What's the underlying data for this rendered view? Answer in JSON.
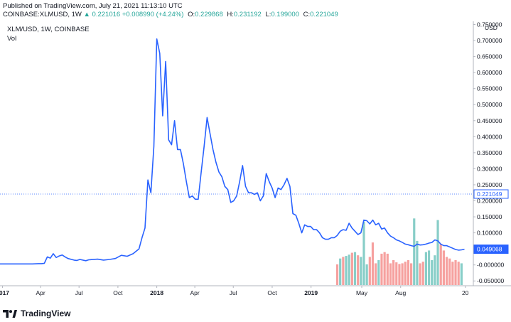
{
  "header": {
    "published": "Published on TradingView.com, July 21, 2021 11:13:10 UTC",
    "symbol": "COINBASE:XLMUSD, 1W",
    "last": "0.221016",
    "change": "+0.008990 (+4.24%)",
    "open_label": "O:",
    "open": "0.229868",
    "high_label": "H:",
    "high": "0.231192",
    "low_label": "L:",
    "low": "0.199000",
    "close_label": "C:",
    "close": "0.221049"
  },
  "pane": {
    "title": "XLM/USD, 1W, COINBASE",
    "vol_label": "Vol"
  },
  "footer": {
    "brand": "TradingView",
    "logo_icon": "tradingview-logo-icon"
  },
  "colors": {
    "line": "#2962ff",
    "vol_up": "#26a69a",
    "vol_down": "#ef5350",
    "price_tag": "#2962ff"
  },
  "chart_data": {
    "type": "line",
    "currency": "USD",
    "ylim": [
      -0.065,
      0.76
    ],
    "y_ticks": [
      {
        "label": "0.750000",
        "v": 0.75
      },
      {
        "label": "0.700000",
        "v": 0.7
      },
      {
        "label": "0.650000",
        "v": 0.65
      },
      {
        "label": "0.600000",
        "v": 0.6
      },
      {
        "label": "0.550000",
        "v": 0.55
      },
      {
        "label": "0.500000",
        "v": 0.5
      },
      {
        "label": "0.450000",
        "v": 0.45
      },
      {
        "label": "0.400000",
        "v": 0.4
      },
      {
        "label": "0.350000",
        "v": 0.35
      },
      {
        "label": "0.300000",
        "v": 0.3
      },
      {
        "label": "0.250000",
        "v": 0.25
      },
      {
        "label": "0.200000",
        "v": 0.2
      },
      {
        "label": "0.150000",
        "v": 0.15
      },
      {
        "label": "0.100000",
        "v": 0.1
      },
      {
        "label": "0.050000",
        "v": 0.05
      },
      {
        "label": "-0.000000",
        "v": 0.0
      },
      {
        "label": "-0.050000",
        "v": -0.05
      }
    ],
    "x_ticks": [
      {
        "label": "2017",
        "t": "2017-01-01"
      },
      {
        "label": "Apr",
        "t": "2017-04-01"
      },
      {
        "label": "Jul",
        "t": "2017-07-01"
      },
      {
        "label": "Oct",
        "t": "2017-10-01"
      },
      {
        "label": "2018",
        "t": "2018-01-01"
      },
      {
        "label": "Apr",
        "t": "2018-04-01"
      },
      {
        "label": "Jul",
        "t": "2018-07-01"
      },
      {
        "label": "Oct",
        "t": "2018-10-01"
      },
      {
        "label": "2019",
        "t": "2019-01-01"
      },
      {
        "label": "May",
        "t": "2019-05-01"
      },
      {
        "label": "Aug",
        "t": "2019-08-01"
      },
      {
        "label": "20",
        "t": "2020-01-01"
      }
    ],
    "x_range": [
      "2016-12-26",
      "2020-01-20"
    ],
    "price_tags": [
      {
        "label": "0.221049",
        "v": 0.221049,
        "style": "outline"
      },
      {
        "label": "0.049068",
        "v": 0.049068,
        "style": "filled"
      }
    ],
    "series": [
      {
        "values": [
          [
            "2016-12-26",
            0.003
          ],
          [
            "2017-01-16",
            0.003
          ],
          [
            "2017-02-13",
            0.003
          ],
          [
            "2017-03-13",
            0.003
          ],
          [
            "2017-03-27",
            0.004
          ],
          [
            "2017-04-03",
            0.004
          ],
          [
            "2017-04-10",
            0.005
          ],
          [
            "2017-04-17",
            0.025
          ],
          [
            "2017-04-24",
            0.021
          ],
          [
            "2017-05-01",
            0.035
          ],
          [
            "2017-05-08",
            0.023
          ],
          [
            "2017-05-15",
            0.028
          ],
          [
            "2017-05-22",
            0.031
          ],
          [
            "2017-05-29",
            0.025
          ],
          [
            "2017-06-05",
            0.02
          ],
          [
            "2017-06-19",
            0.015
          ],
          [
            "2017-06-26",
            0.014
          ],
          [
            "2017-07-03",
            0.017
          ],
          [
            "2017-07-17",
            0.013
          ],
          [
            "2017-07-24",
            0.016
          ],
          [
            "2017-08-14",
            0.018
          ],
          [
            "2017-08-28",
            0.015
          ],
          [
            "2017-09-11",
            0.017
          ],
          [
            "2017-09-25",
            0.02
          ],
          [
            "2017-10-09",
            0.03
          ],
          [
            "2017-10-23",
            0.027
          ],
          [
            "2017-11-06",
            0.035
          ],
          [
            "2017-11-20",
            0.05
          ],
          [
            "2017-11-27",
            0.085
          ],
          [
            "2017-12-04",
            0.115
          ],
          [
            "2017-12-11",
            0.265
          ],
          [
            "2017-12-18",
            0.225
          ],
          [
            "2017-12-25",
            0.37
          ],
          [
            "2018-01-01",
            0.705
          ],
          [
            "2018-01-08",
            0.66
          ],
          [
            "2018-01-15",
            0.465
          ],
          [
            "2018-01-22",
            0.635
          ],
          [
            "2018-01-29",
            0.39
          ],
          [
            "2018-02-05",
            0.375
          ],
          [
            "2018-02-12",
            0.45
          ],
          [
            "2018-02-19",
            0.36
          ],
          [
            "2018-02-26",
            0.36
          ],
          [
            "2018-03-05",
            0.315
          ],
          [
            "2018-03-12",
            0.26
          ],
          [
            "2018-03-19",
            0.21
          ],
          [
            "2018-03-26",
            0.215
          ],
          [
            "2018-04-02",
            0.205
          ],
          [
            "2018-04-09",
            0.205
          ],
          [
            "2018-04-16",
            0.29
          ],
          [
            "2018-04-23",
            0.37
          ],
          [
            "2018-04-30",
            0.46
          ],
          [
            "2018-05-07",
            0.41
          ],
          [
            "2018-05-14",
            0.36
          ],
          [
            "2018-05-21",
            0.32
          ],
          [
            "2018-05-28",
            0.29
          ],
          [
            "2018-06-04",
            0.275
          ],
          [
            "2018-06-11",
            0.245
          ],
          [
            "2018-06-18",
            0.235
          ],
          [
            "2018-06-25",
            0.195
          ],
          [
            "2018-07-02",
            0.2
          ],
          [
            "2018-07-09",
            0.215
          ],
          [
            "2018-07-16",
            0.26
          ],
          [
            "2018-07-23",
            0.31
          ],
          [
            "2018-07-30",
            0.245
          ],
          [
            "2018-08-06",
            0.225
          ],
          [
            "2018-08-13",
            0.225
          ],
          [
            "2018-08-20",
            0.22
          ],
          [
            "2018-08-27",
            0.225
          ],
          [
            "2018-09-03",
            0.2
          ],
          [
            "2018-09-10",
            0.215
          ],
          [
            "2018-09-17",
            0.285
          ],
          [
            "2018-09-24",
            0.26
          ],
          [
            "2018-10-01",
            0.24
          ],
          [
            "2018-10-08",
            0.21
          ],
          [
            "2018-10-15",
            0.24
          ],
          [
            "2018-10-22",
            0.235
          ],
          [
            "2018-10-29",
            0.25
          ],
          [
            "2018-11-05",
            0.27
          ],
          [
            "2018-11-12",
            0.245
          ],
          [
            "2018-11-19",
            0.16
          ],
          [
            "2018-11-26",
            0.155
          ],
          [
            "2018-12-03",
            0.13
          ],
          [
            "2018-12-10",
            0.1
          ],
          [
            "2018-12-17",
            0.125
          ],
          [
            "2018-12-24",
            0.12
          ],
          [
            "2018-12-31",
            0.12
          ],
          [
            "2019-01-07",
            0.11
          ],
          [
            "2019-01-14",
            0.11
          ],
          [
            "2019-01-21",
            0.1
          ],
          [
            "2019-01-28",
            0.085
          ],
          [
            "2019-02-04",
            0.08
          ],
          [
            "2019-02-11",
            0.08
          ],
          [
            "2019-02-18",
            0.085
          ],
          [
            "2019-02-25",
            0.085
          ],
          [
            "2019-03-04",
            0.092
          ],
          [
            "2019-03-11",
            0.105
          ],
          [
            "2019-03-18",
            0.11
          ],
          [
            "2019-03-25",
            0.108
          ],
          [
            "2019-04-01",
            0.13
          ],
          [
            "2019-04-08",
            0.115
          ],
          [
            "2019-04-15",
            0.105
          ],
          [
            "2019-04-22",
            0.095
          ],
          [
            "2019-04-29",
            0.1
          ],
          [
            "2019-05-06",
            0.14
          ],
          [
            "2019-05-13",
            0.138
          ],
          [
            "2019-05-20",
            0.128
          ],
          [
            "2019-05-27",
            0.14
          ],
          [
            "2019-06-03",
            0.125
          ],
          [
            "2019-06-10",
            0.13
          ],
          [
            "2019-06-17",
            0.112
          ],
          [
            "2019-06-24",
            0.115
          ],
          [
            "2019-07-01",
            0.1
          ],
          [
            "2019-07-08",
            0.09
          ],
          [
            "2019-07-15",
            0.085
          ],
          [
            "2019-07-22",
            0.078
          ],
          [
            "2019-07-29",
            0.075
          ],
          [
            "2019-08-05",
            0.07
          ],
          [
            "2019-08-12",
            0.065
          ],
          [
            "2019-08-19",
            0.063
          ],
          [
            "2019-08-26",
            0.06
          ],
          [
            "2019-09-02",
            0.058
          ],
          [
            "2019-09-09",
            0.065
          ],
          [
            "2019-09-16",
            0.062
          ],
          [
            "2019-09-23",
            0.063
          ],
          [
            "2019-09-30",
            0.065
          ],
          [
            "2019-10-07",
            0.068
          ],
          [
            "2019-10-14",
            0.07
          ],
          [
            "2019-10-21",
            0.078
          ],
          [
            "2019-10-28",
            0.075
          ],
          [
            "2019-11-04",
            0.065
          ],
          [
            "2019-11-11",
            0.06
          ],
          [
            "2019-11-18",
            0.06
          ],
          [
            "2019-11-25",
            0.056
          ],
          [
            "2019-12-02",
            0.052
          ],
          [
            "2019-12-09",
            0.048
          ],
          [
            "2019-12-16",
            0.046
          ],
          [
            "2019-12-23",
            0.047
          ],
          [
            "2019-12-30",
            0.049
          ]
        ]
      }
    ],
    "volume": {
      "baseline": 0,
      "bars": [
        [
          "2019-03-04",
          0.0,
          "down"
        ],
        [
          "2019-03-11",
          0.02,
          "up"
        ],
        [
          "2019-03-18",
          0.025,
          "down"
        ],
        [
          "2019-03-25",
          0.028,
          "up"
        ],
        [
          "2019-04-01",
          0.032,
          "up"
        ],
        [
          "2019-04-08",
          0.038,
          "down"
        ],
        [
          "2019-04-15",
          0.04,
          "up"
        ],
        [
          "2019-04-22",
          0.03,
          "down"
        ],
        [
          "2019-04-29",
          0.025,
          "up"
        ],
        [
          "2019-05-06",
          0.135,
          "up"
        ],
        [
          "2019-05-13",
          0.0,
          "up"
        ],
        [
          "2019-05-20",
          0.025,
          "down"
        ],
        [
          "2019-05-27",
          0.07,
          "down"
        ],
        [
          "2019-06-03",
          0.005,
          "down"
        ],
        [
          "2019-06-10",
          0.015,
          "up"
        ],
        [
          "2019-06-17",
          0.035,
          "down"
        ],
        [
          "2019-06-24",
          0.04,
          "down"
        ],
        [
          "2019-07-01",
          0.035,
          "down"
        ],
        [
          "2019-07-08",
          0.005,
          "down"
        ],
        [
          "2019-07-15",
          0.015,
          "down"
        ],
        [
          "2019-07-22",
          0.008,
          "down"
        ],
        [
          "2019-07-29",
          0.003,
          "down"
        ],
        [
          "2019-08-05",
          0.005,
          "down"
        ],
        [
          "2019-08-12",
          0.01,
          "down"
        ],
        [
          "2019-08-19",
          0.015,
          "down"
        ],
        [
          "2019-08-26",
          0.005,
          "down"
        ],
        [
          "2019-09-02",
          0.145,
          "up"
        ],
        [
          "2019-09-09",
          0.075,
          "up"
        ],
        [
          "2019-09-16",
          0.005,
          "down"
        ],
        [
          "2019-09-23",
          0.01,
          "down"
        ],
        [
          "2019-09-30",
          0.04,
          "up"
        ],
        [
          "2019-10-07",
          0.045,
          "up"
        ],
        [
          "2019-10-14",
          0.015,
          "up"
        ],
        [
          "2019-10-21",
          0.03,
          "up"
        ],
        [
          "2019-10-28",
          0.14,
          "up"
        ],
        [
          "2019-11-04",
          0.065,
          "down"
        ],
        [
          "2019-11-11",
          0.045,
          "down"
        ],
        [
          "2019-11-18",
          0.025,
          "down"
        ],
        [
          "2019-11-25",
          0.02,
          "down"
        ],
        [
          "2019-12-02",
          0.01,
          "down"
        ],
        [
          "2019-12-09",
          0.015,
          "down"
        ],
        [
          "2019-12-16",
          0.01,
          "down"
        ],
        [
          "2019-12-23",
          0.005,
          "up"
        ]
      ]
    }
  }
}
